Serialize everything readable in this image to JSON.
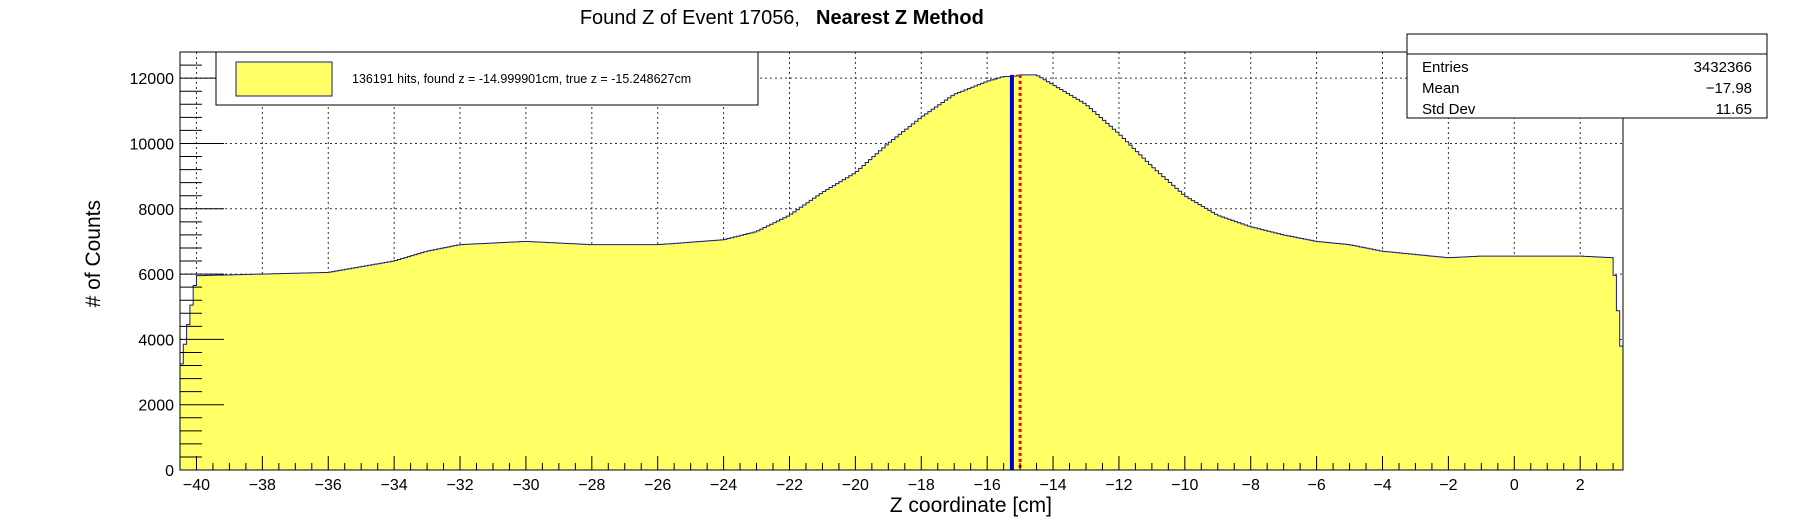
{
  "title": {
    "plain": "Found Z of Event 17056,",
    "bold": "Nearest Z Method"
  },
  "stats_box": {
    "rows": [
      {
        "label": "Entries",
        "value": "3432366"
      },
      {
        "label": "Mean",
        "value": "−17.98"
      },
      {
        "label": "Std Dev",
        "value": "11.65"
      }
    ]
  },
  "legend": {
    "label": "136191 hits, found z = -14.999901cm, true z = -15.248627cm",
    "position": "top-left"
  },
  "colors": {
    "fill": "#ffff66",
    "outline": "#1a1a7a",
    "found_line": "#0000cc",
    "true_line": "#ee0000"
  },
  "chart_data": {
    "type": "bar",
    "subtype": "histogram",
    "title": "Found Z of Event 17056, Nearest Z Method",
    "xlabel": "Z coordinate [cm]",
    "ylabel": "# of Counts",
    "xlim": [
      -40.5,
      3.3
    ],
    "ylim": [
      0,
      12800
    ],
    "grid": true,
    "x_ticks": [
      "−40",
      "−38",
      "−36",
      "−34",
      "−32",
      "−30",
      "−28",
      "−26",
      "−24",
      "−22",
      "−20",
      "−18",
      "−16",
      "−14",
      "−12",
      "−10",
      "−8",
      "−6",
      "−4",
      "−2",
      "0",
      "2"
    ],
    "y_ticks": [
      "0",
      "2000",
      "4000",
      "6000",
      "8000",
      "10000",
      "12000"
    ],
    "series": [
      {
        "type": "histogram",
        "x": [
          -40.5,
          -40.0,
          -38.0,
          -36.0,
          -34.0,
          -33.0,
          -32.0,
          -30.0,
          -28.0,
          -26.0,
          -24.0,
          -23.0,
          -22.0,
          -21.0,
          -20.0,
          -19.0,
          -18.0,
          -17.0,
          -16.0,
          -15.5,
          -15.2,
          -15.0,
          -14.5,
          -14.0,
          -13.0,
          -12.0,
          -11.0,
          -10.0,
          -9.0,
          -8.0,
          -7.0,
          -6.0,
          -5.0,
          -4.0,
          -3.0,
          -2.0,
          -1.0,
          0.0,
          1.0,
          2.0,
          3.0,
          3.3
        ],
        "values": [
          2950,
          5950,
          6000,
          6050,
          6400,
          6700,
          6900,
          7000,
          6900,
          6900,
          7050,
          7300,
          7800,
          8500,
          9100,
          10000,
          10800,
          11500,
          11900,
          12050,
          12050,
          12100,
          12100,
          11800,
          11200,
          10300,
          9300,
          8400,
          7800,
          7450,
          7200,
          7000,
          6900,
          6700,
          6600,
          6500,
          6550,
          6550,
          6550,
          6550,
          6500,
          3250
        ]
      }
    ],
    "markers": [
      {
        "name": "found z",
        "x": -14.999901,
        "style": "dotted",
        "color": "#ee0000"
      },
      {
        "name": "true z",
        "x": -15.248627,
        "style": "solid",
        "color": "#0000cc"
      }
    ]
  }
}
